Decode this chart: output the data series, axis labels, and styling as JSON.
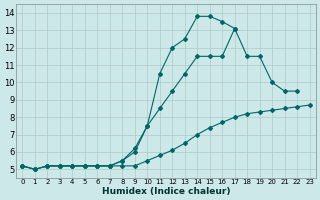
{
  "xlabel": "Humidex (Indice chaleur)",
  "bg_color": "#cce8e8",
  "grid_color": "#b0c8c8",
  "line_color": "#006666",
  "xlim": [
    -0.5,
    23.5
  ],
  "ylim": [
    4.5,
    14.5
  ],
  "xticks": [
    0,
    1,
    2,
    3,
    4,
    5,
    6,
    7,
    8,
    9,
    10,
    11,
    12,
    13,
    14,
    15,
    16,
    17,
    18,
    19,
    20,
    21,
    22,
    23
  ],
  "yticks": [
    5,
    6,
    7,
    8,
    9,
    10,
    11,
    12,
    13,
    14
  ],
  "series1_x": [
    0,
    1,
    2,
    3,
    4,
    5,
    6,
    7,
    8,
    9,
    10,
    11,
    12,
    13,
    14,
    15,
    16,
    17,
    18,
    19,
    20,
    21,
    22,
    23
  ],
  "series1_y": [
    5.2,
    5.0,
    5.2,
    5.2,
    5.2,
    5.2,
    5.2,
    5.2,
    5.2,
    5.2,
    5.5,
    5.8,
    6.1,
    6.5,
    7.0,
    7.4,
    7.7,
    8.0,
    8.2,
    8.3,
    8.4,
    8.5,
    8.6,
    8.7
  ],
  "series2_x": [
    0,
    1,
    2,
    3,
    4,
    5,
    6,
    7,
    8,
    9,
    10,
    11,
    12,
    13,
    14,
    15,
    16,
    17,
    18,
    19,
    20,
    21,
    22
  ],
  "series2_y": [
    5.2,
    5.0,
    5.2,
    5.2,
    5.2,
    5.2,
    5.2,
    5.2,
    5.5,
    6.0,
    7.5,
    8.5,
    9.5,
    10.5,
    11.5,
    11.5,
    11.5,
    13.1,
    11.5,
    11.5,
    10.0,
    9.5,
    9.5
  ],
  "series3_x": [
    0,
    1,
    2,
    3,
    4,
    5,
    6,
    7,
    8,
    9,
    10,
    11,
    12,
    13,
    14,
    15,
    16,
    17
  ],
  "series3_y": [
    5.2,
    5.0,
    5.2,
    5.2,
    5.2,
    5.2,
    5.2,
    5.2,
    5.5,
    6.2,
    7.5,
    10.5,
    12.0,
    12.5,
    13.8,
    13.8,
    13.5,
    13.1
  ]
}
